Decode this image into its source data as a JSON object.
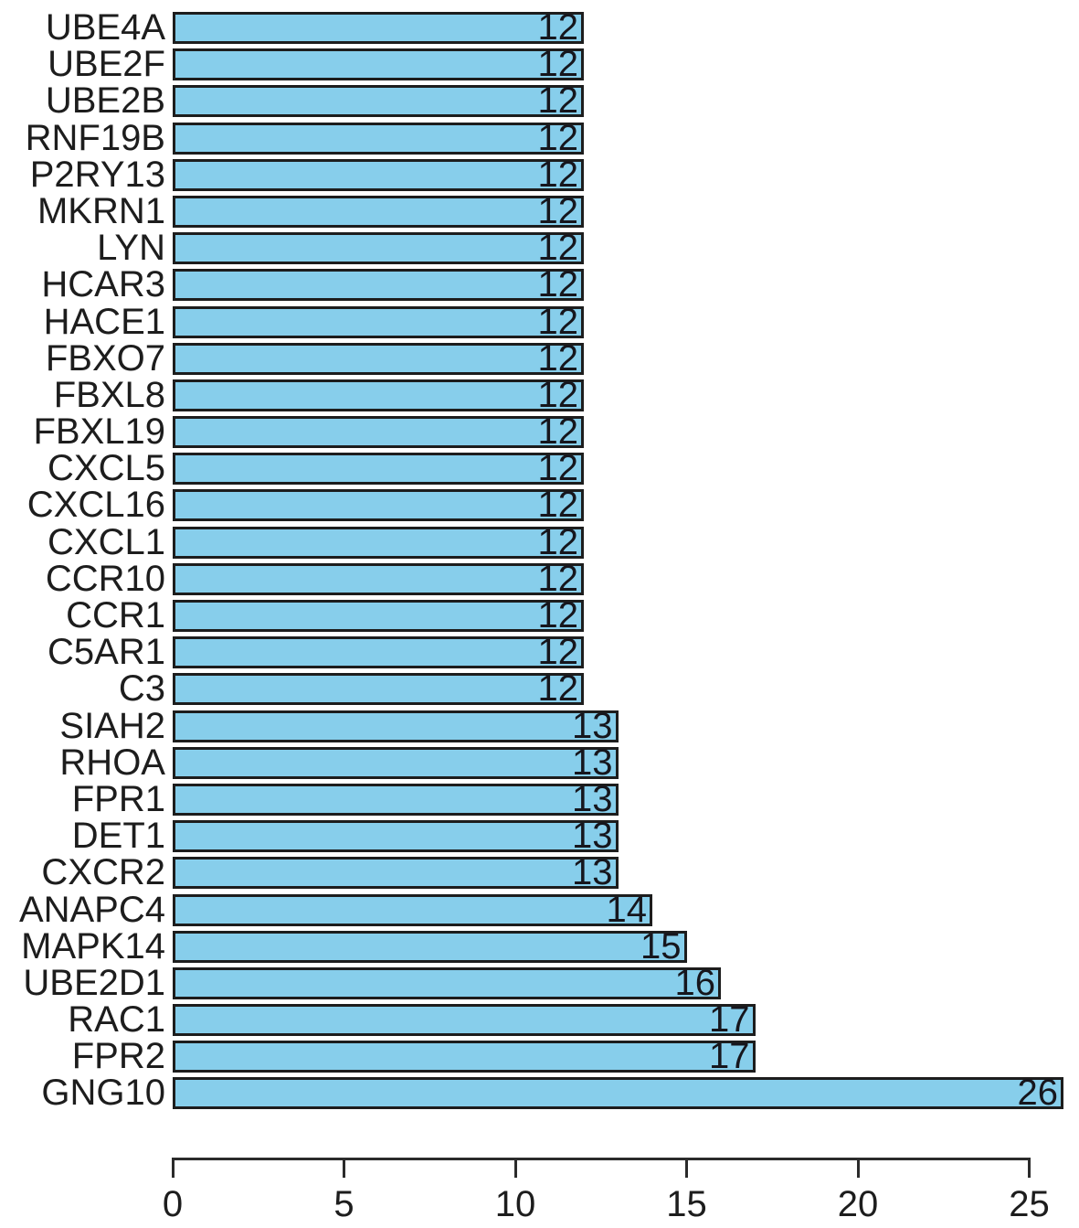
{
  "chart_data": {
    "type": "bar",
    "orientation": "horizontal",
    "title": "",
    "xlabel": "",
    "ylabel": "",
    "categories": [
      "UBE4A",
      "UBE2F",
      "UBE2B",
      "RNF19B",
      "P2RY13",
      "MKRN1",
      "LYN",
      "HCAR3",
      "HACE1",
      "FBXO7",
      "FBXL8",
      "FBXL19",
      "CXCL5",
      "CXCL16",
      "CXCL1",
      "CCR10",
      "CCR1",
      "C5AR1",
      "C3",
      "SIAH2",
      "RHOA",
      "FPR1",
      "DET1",
      "CXCR2",
      "ANAPC4",
      "MAPK14",
      "UBE2D1",
      "RAC1",
      "FPR2",
      "GNG10"
    ],
    "values": [
      12,
      12,
      12,
      12,
      12,
      12,
      12,
      12,
      12,
      12,
      12,
      12,
      12,
      12,
      12,
      12,
      12,
      12,
      12,
      13,
      13,
      13,
      13,
      13,
      14,
      15,
      16,
      17,
      17,
      26
    ],
    "bar_value_labels": [
      "12",
      "12",
      "12",
      "12",
      "12",
      "12",
      "12",
      "12",
      "12",
      "12",
      "12",
      "12",
      "12",
      "12",
      "12",
      "12",
      "12",
      "12",
      "12",
      "13",
      "13",
      "13",
      "13",
      "13",
      "14",
      "15",
      "16",
      "17",
      "17",
      "26"
    ],
    "x_ticks": [
      0,
      5,
      10,
      15,
      20,
      25
    ],
    "xlim": [
      0,
      25
    ],
    "grid": false,
    "legend": "none",
    "colors": {
      "bar_fill": "#87CEEB",
      "bar_border": "#1d1d1d",
      "text": "#1d1d1d",
      "axis": "#2b2b2b",
      "background": "#ffffff"
    }
  }
}
